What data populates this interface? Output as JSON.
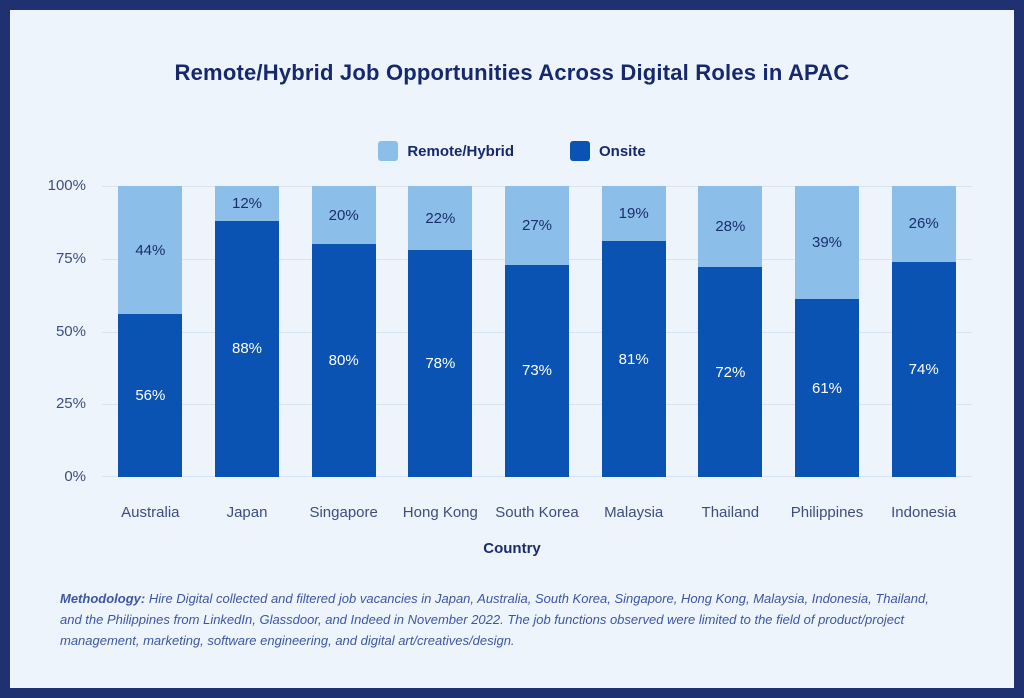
{
  "chart": {
    "title": "Remote/Hybrid Job Opportunities Across Digital Roles in APAC"
  },
  "chart_data": {
    "type": "bar",
    "stacked": true,
    "title": "Remote/Hybrid Job Opportunities Across Digital Roles in APAC",
    "categories": [
      "Australia",
      "Japan",
      "Singapore",
      "Hong Kong",
      "South Korea",
      "Malaysia",
      "Thailand",
      "Philippines",
      "Indonesia"
    ],
    "series": [
      {
        "name": "Remote/Hybrid",
        "color": "#8cbeea",
        "values": [
          44,
          12,
          20,
          22,
          27,
          19,
          28,
          39,
          26
        ]
      },
      {
        "name": "Onsite",
        "color": "#0a53b2",
        "values": [
          56,
          88,
          80,
          78,
          73,
          81,
          72,
          61,
          74
        ]
      }
    ],
    "xlabel": "Country",
    "ylabel": "",
    "ylim": [
      0,
      100
    ],
    "yticks": [
      {
        "label": "0%",
        "value": 0
      },
      {
        "label": "25%",
        "value": 25
      },
      {
        "label": "50%",
        "value": 50
      },
      {
        "label": "75%",
        "value": 75
      },
      {
        "label": "100%",
        "value": 100
      }
    ],
    "grid": true,
    "legend_position": "top",
    "value_labels": "percent-inside-segments"
  },
  "methodology": {
    "label": "Methodology:",
    "text": "Hire Digital collected and filtered job vacancies in Japan, Australia, South Korea, Singapore, Hong Kong, Malaysia, Indonesia, Thailand, and the Philippines from LinkedIn, Glassdoor, and Indeed in November 2022. The job functions observed were limited to the field of product/project management, marketing, software engineering, and digital art/creatives/design."
  },
  "colors": {
    "frame": "#1f3170",
    "panel_background": "#edf4fb",
    "gridline": "#d7e4f2",
    "remote_hybrid": "#8cbeea",
    "onsite": "#0a53b2",
    "title_text": "#16286e",
    "axis_text": "#3e4d80",
    "value_text_dark": "#1b2e6b",
    "value_text_light": "#ffffff",
    "methodology_text": "#3c56a4"
  }
}
